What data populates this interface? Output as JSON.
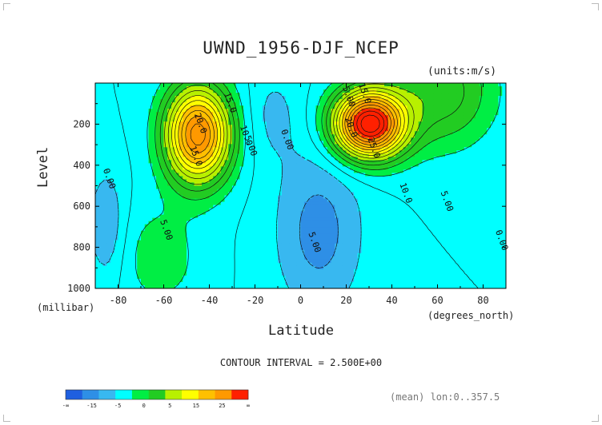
{
  "chart_data": {
    "type": "contour",
    "title": "UWND_1956-DJF_NCEP",
    "units": "(units:m/s)",
    "xlabel": "Latitude",
    "xlabel_units": "(degrees_north)",
    "ylabel": "Level",
    "ylabel_units": "(millibar)",
    "xlim": [
      -90,
      90
    ],
    "ylim": [
      1000,
      0
    ],
    "x_ticks": [
      -80,
      -60,
      -40,
      -20,
      0,
      20,
      40,
      60,
      80
    ],
    "y_ticks": [
      200,
      400,
      600,
      800,
      1000
    ],
    "contour_interval": "CONTOUR INTERVAL = 2.500E+00",
    "mean_note": "(mean) lon:0..357.5",
    "colorbar": {
      "labels": [
        "-∞",
        "-15",
        "-5",
        "0",
        "5",
        "15",
        "25",
        "∞"
      ],
      "colors": [
        "#1f5fe0",
        "#2e8fe6",
        "#38b8f0",
        "#00ffff",
        "#00ee44",
        "#22cc22",
        "#b8f000",
        "#ffff00",
        "#ffc000",
        "#ff9900",
        "#ff2000"
      ]
    },
    "contour_labels": [
      {
        "text": "15.0",
        "lat": -32,
        "p": 100
      },
      {
        "text": "20.0",
        "lat": -45,
        "p": 200
      },
      {
        "text": "15.0",
        "lat": -47,
        "p": 360
      },
      {
        "text": "10.0",
        "lat": -25,
        "p": 260
      },
      {
        "text": "5.00",
        "lat": -23,
        "p": 310
      },
      {
        "text": "0.00",
        "lat": -7,
        "p": 280
      },
      {
        "text": "0.00",
        "lat": -85,
        "p": 470
      },
      {
        "text": "5.00",
        "lat": -60,
        "p": 720
      },
      {
        "text": "5.00",
        "lat": 5,
        "p": 780
      },
      {
        "text": "5.00",
        "lat": 20,
        "p": 70
      },
      {
        "text": "15.0",
        "lat": 27,
        "p": 55
      },
      {
        "text": "20.0",
        "lat": 21,
        "p": 220
      },
      {
        "text": "25.0",
        "lat": 31,
        "p": 320
      },
      {
        "text": "10.0",
        "lat": 45,
        "p": 540
      },
      {
        "text": "5.00",
        "lat": 63,
        "p": 580
      },
      {
        "text": "0.00",
        "lat": 87,
        "p": 770
      }
    ]
  }
}
